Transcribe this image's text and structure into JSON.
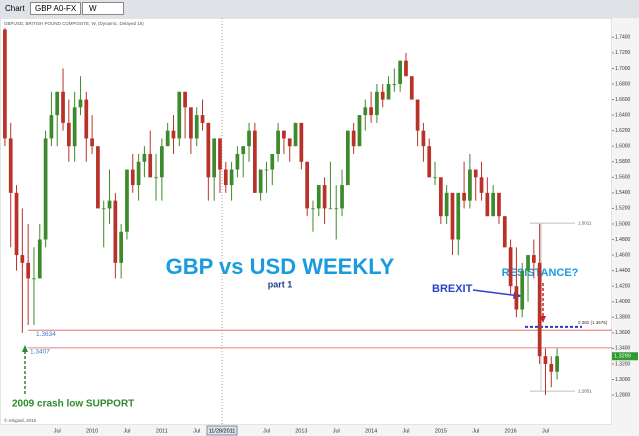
{
  "toolbar": {
    "title": "Chart",
    "symbol": "GBP A0-FX",
    "interval": "W"
  },
  "chart_data": {
    "type": "candlestick",
    "title": "GBP vs USD WEEKLY",
    "subtitle": "part 1",
    "header": "GBPUSD, BRITISH POUND COMPOSITE, W, (Dynamic, Delayed 15)",
    "footer": "© eSignal, 2016",
    "crosshair_label": "11/28/2011",
    "annotations": {
      "resistance": "RESISTANCE?",
      "brexit": "BREXIT",
      "support": "2009 crash low SUPPORT"
    },
    "up_color": "#3c8a2c",
    "down_color": "#b8322a",
    "categories": [
      null,
      null,
      null,
      null,
      null,
      null,
      null,
      null,
      null,
      "Jul",
      null,
      null,
      null,
      null,
      null,
      "2010",
      null,
      null,
      null,
      null,
      null,
      "Jul",
      null,
      null,
      null,
      null,
      null,
      "2011",
      null,
      null,
      null,
      null,
      null,
      "Jul",
      null,
      null,
      null,
      null,
      null,
      null,
      null,
      null,
      null,
      null,
      null,
      "Jul",
      null,
      null,
      null,
      null,
      null,
      "2013",
      null,
      null,
      null,
      null,
      null,
      "Jul",
      null,
      null,
      null,
      null,
      null,
      "2014",
      null,
      null,
      null,
      null,
      null,
      "Jul",
      null,
      null,
      null,
      null,
      null,
      "2015",
      null,
      null,
      null,
      null,
      null,
      "Jul",
      null,
      null,
      null,
      null,
      null,
      "2016",
      null,
      null,
      null,
      null,
      null,
      "Jul",
      null,
      null
    ],
    "open": [
      1.75,
      1.61,
      1.54,
      1.46,
      1.45,
      1.43,
      1.43,
      1.48,
      1.61,
      1.64,
      1.67,
      1.63,
      1.6,
      1.65,
      1.66,
      1.61,
      1.6,
      1.52,
      1.52,
      1.53,
      1.45,
      1.49,
      1.57,
      1.55,
      1.58,
      1.59,
      1.56,
      1.56,
      1.6,
      1.62,
      1.61,
      1.67,
      1.65,
      1.61,
      1.64,
      1.63,
      1.56,
      1.61,
      1.57,
      1.55,
      1.57,
      1.59,
      1.6,
      1.62,
      1.54,
      1.57,
      1.57,
      1.59,
      1.62,
      1.61,
      1.6,
      1.63,
      1.58,
      1.52,
      1.52,
      1.55,
      1.52,
      1.52,
      1.52,
      1.55,
      1.62,
      1.6,
      1.64,
      1.65,
      1.64,
      1.67,
      1.66,
      1.68,
      1.68,
      1.71,
      1.69,
      1.66,
      1.62,
      1.6,
      1.56,
      1.56,
      1.51,
      1.54,
      1.48,
      1.54,
      1.53,
      1.57,
      1.56,
      1.54,
      1.51,
      1.54,
      1.51,
      1.47,
      1.42,
      1.39,
      1.44,
      1.46,
      1.45,
      1.33,
      1.32,
      1.31
    ],
    "high": [
      1.752,
      1.63,
      1.55,
      1.52,
      1.5,
      1.47,
      1.5,
      1.62,
      1.67,
      1.67,
      1.7,
      1.66,
      1.67,
      1.69,
      1.67,
      1.64,
      1.6,
      1.53,
      1.57,
      1.54,
      1.5,
      1.57,
      1.59,
      1.59,
      1.6,
      1.62,
      1.59,
      1.61,
      1.63,
      1.64,
      1.67,
      1.67,
      1.65,
      1.65,
      1.66,
      1.63,
      1.61,
      1.61,
      1.58,
      1.58,
      1.6,
      1.6,
      1.63,
      1.63,
      1.57,
      1.58,
      1.59,
      1.63,
      1.62,
      1.61,
      1.63,
      1.63,
      1.58,
      1.53,
      1.55,
      1.56,
      1.58,
      1.55,
      1.57,
      1.62,
      1.63,
      1.64,
      1.66,
      1.67,
      1.68,
      1.68,
      1.69,
      1.7,
      1.71,
      1.72,
      1.69,
      1.66,
      1.63,
      1.61,
      1.58,
      1.56,
      1.55,
      1.54,
      1.54,
      1.58,
      1.59,
      1.57,
      1.58,
      1.56,
      1.55,
      1.54,
      1.51,
      1.48,
      1.47,
      1.45,
      1.46,
      1.48,
      1.5,
      1.34,
      1.33,
      1.34
    ],
    "low": [
      1.6,
      1.47,
      1.44,
      1.36,
      1.37,
      1.37,
      1.43,
      1.47,
      1.6,
      1.6,
      1.62,
      1.58,
      1.58,
      1.64,
      1.58,
      1.59,
      1.52,
      1.47,
      1.5,
      1.43,
      1.43,
      1.48,
      1.54,
      1.53,
      1.56,
      1.56,
      1.53,
      1.53,
      1.6,
      1.59,
      1.6,
      1.61,
      1.59,
      1.6,
      1.62,
      1.53,
      1.53,
      1.54,
      1.54,
      1.53,
      1.56,
      1.56,
      1.58,
      1.54,
      1.53,
      1.54,
      1.55,
      1.58,
      1.59,
      1.58,
      1.6,
      1.57,
      1.51,
      1.49,
      1.51,
      1.5,
      1.52,
      1.48,
      1.51,
      1.55,
      1.59,
      1.6,
      1.62,
      1.63,
      1.63,
      1.65,
      1.66,
      1.67,
      1.67,
      1.69,
      1.66,
      1.6,
      1.58,
      1.56,
      1.55,
      1.5,
      1.5,
      1.46,
      1.46,
      1.52,
      1.52,
      1.53,
      1.53,
      1.51,
      1.51,
      1.5,
      1.47,
      1.41,
      1.38,
      1.38,
      1.4,
      1.43,
      1.32,
      1.28,
      1.29,
      1.3
    ],
    "close": [
      1.61,
      1.54,
      1.46,
      1.45,
      1.43,
      1.43,
      1.48,
      1.61,
      1.64,
      1.67,
      1.63,
      1.6,
      1.65,
      1.66,
      1.61,
      1.6,
      1.52,
      1.52,
      1.53,
      1.45,
      1.49,
      1.57,
      1.55,
      1.58,
      1.59,
      1.56,
      1.56,
      1.6,
      1.62,
      1.61,
      1.67,
      1.65,
      1.61,
      1.64,
      1.63,
      1.56,
      1.61,
      1.57,
      1.55,
      1.57,
      1.59,
      1.6,
      1.62,
      1.54,
      1.57,
      1.57,
      1.59,
      1.62,
      1.61,
      1.6,
      1.63,
      1.58,
      1.52,
      1.52,
      1.55,
      1.52,
      1.52,
      1.52,
      1.55,
      1.62,
      1.6,
      1.64,
      1.65,
      1.64,
      1.67,
      1.66,
      1.68,
      1.68,
      1.71,
      1.69,
      1.66,
      1.62,
      1.6,
      1.56,
      1.56,
      1.51,
      1.54,
      1.48,
      1.54,
      1.53,
      1.57,
      1.56,
      1.54,
      1.51,
      1.54,
      1.51,
      1.47,
      1.42,
      1.39,
      1.44,
      1.46,
      1.45,
      1.33,
      1.32,
      1.31,
      1.33
    ],
    "ylim": [
      1.2415,
      1.752
    ],
    "yticks": [
      {
        "value": 1.28,
        "label": "1.2800"
      },
      {
        "value": 1.3,
        "label": "1.3000"
      },
      {
        "value": 1.32,
        "label": "1.3200"
      },
      {
        "value": 1.34,
        "label": "1.3400"
      },
      {
        "value": 1.36,
        "label": "1.3600"
      },
      {
        "value": 1.38,
        "label": "1.3800"
      },
      {
        "value": 1.4,
        "label": "1.4000"
      },
      {
        "value": 1.42,
        "label": "1.4200"
      },
      {
        "value": 1.44,
        "label": "1.4400"
      },
      {
        "value": 1.46,
        "label": "1.4600"
      },
      {
        "value": 1.48,
        "label": "1.4800"
      },
      {
        "value": 1.5,
        "label": "1.5000"
      },
      {
        "value": 1.52,
        "label": "1.5200"
      },
      {
        "value": 1.54,
        "label": "1.5400"
      },
      {
        "value": 1.56,
        "label": "1.5600"
      },
      {
        "value": 1.58,
        "label": "1.5800"
      },
      {
        "value": 1.6,
        "label": "1.6000"
      },
      {
        "value": 1.62,
        "label": "1.6200"
      },
      {
        "value": 1.64,
        "label": "1.6400"
      },
      {
        "value": 1.66,
        "label": "1.6600"
      },
      {
        "value": 1.68,
        "label": "1.6800"
      },
      {
        "value": 1.7,
        "label": "1.7000"
      },
      {
        "value": 1.72,
        "label": "1.7200"
      },
      {
        "value": 1.74,
        "label": "1.7400"
      }
    ],
    "levels": [
      {
        "value": 1.3634,
        "label": "1.3634"
      },
      {
        "value": 1.3407,
        "label": "1.3407"
      }
    ],
    "fib": {
      "high": {
        "value": 1.5011,
        "label": "1.5011"
      },
      "level": {
        "value": 1.3676,
        "label": "0.382 (1.3676)"
      },
      "low": {
        "value": 1.2851,
        "label": "1.2851"
      }
    },
    "last_price": {
      "value": 1.3299,
      "label": "1.3299"
    }
  }
}
